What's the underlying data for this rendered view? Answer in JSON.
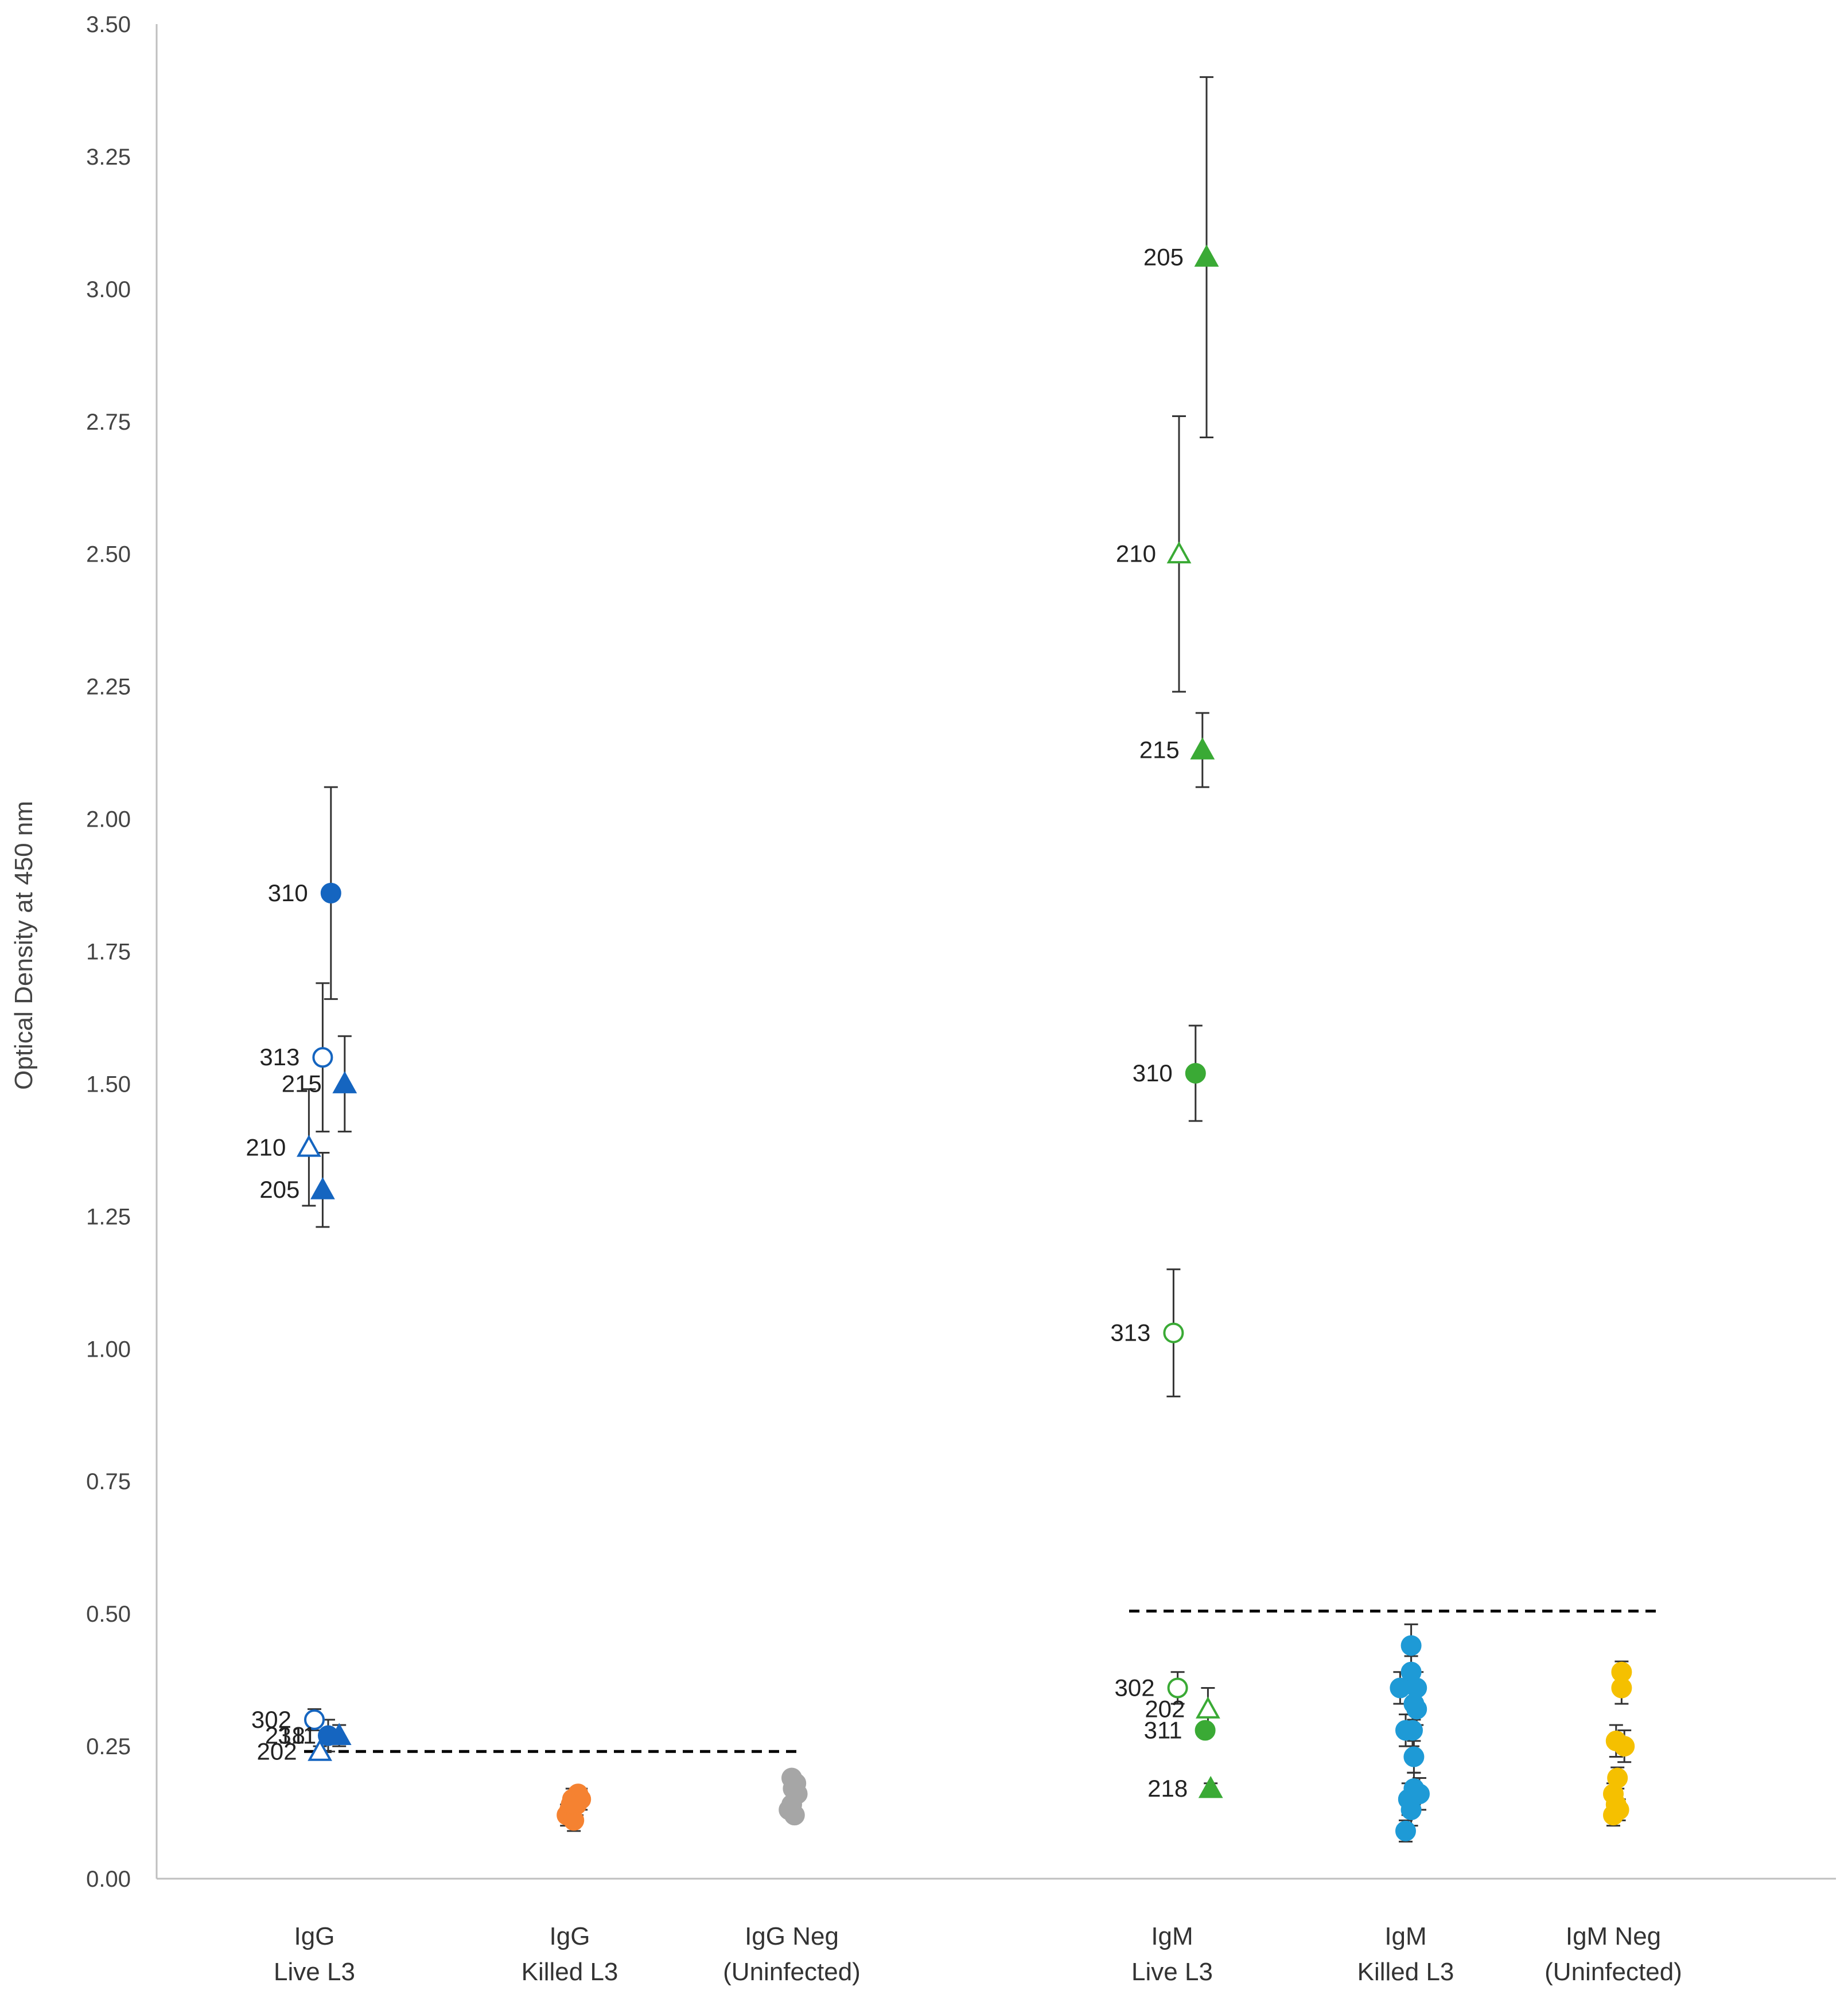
{
  "chart_data": {
    "type": "scatter",
    "title": "",
    "xlabel": "",
    "ylabel": "Optical Density at 450 nm",
    "ylim": [
      0,
      3.5
    ],
    "yticks": [
      "0.00",
      "0.25",
      "0.50",
      "0.75",
      "1.00",
      "1.25",
      "1.50",
      "1.75",
      "2.00",
      "2.25",
      "2.50",
      "2.75",
      "3.00",
      "3.25",
      "3.50"
    ],
    "grid": false,
    "categories": [
      {
        "line1": "IgG",
        "line2": "Live L3"
      },
      {
        "line1": "IgG",
        "line2": "Killed L3"
      },
      {
        "line1": "IgG Neg",
        "line2": "(Uninfected)"
      },
      {
        "line1": "IgM",
        "line2": "Live L3"
      },
      {
        "line1": "IgM",
        "line2": "Killed L3"
      },
      {
        "line1": "IgM Neg",
        "line2": "(Uninfected)"
      }
    ],
    "colors": {
      "igg": "#1565c0",
      "killed_igg": "#f58231",
      "neg_igg": "#a6a6a6",
      "igm": "#3aaa35",
      "killed_igm": "#1e9ad6",
      "neg_igm": "#f5c000",
      "cutoff": "#000000",
      "errorbar": "#333333",
      "axis": "#bfbfbf"
    },
    "cutoffs": [
      {
        "group": "IgG",
        "value": 0.24
      },
      {
        "group": "IgM",
        "value": 0.505
      }
    ],
    "labeled_points": [
      {
        "group": "IgG Live L3",
        "label": "310",
        "x": 0.12,
        "y": 1.86,
        "err": 0.2,
        "marker": "circle",
        "filled": true
      },
      {
        "group": "IgG Live L3",
        "label": "313",
        "x": 0.06,
        "y": 1.55,
        "err": 0.14,
        "marker": "circle",
        "filled": false
      },
      {
        "group": "IgG Live L3",
        "label": "215",
        "x": 0.22,
        "y": 1.5,
        "err": 0.09,
        "marker": "triangle",
        "filled": true
      },
      {
        "group": "IgG Live L3",
        "label": "210",
        "x": -0.04,
        "y": 1.38,
        "err": 0.11,
        "marker": "triangle",
        "filled": false
      },
      {
        "group": "IgG Live L3",
        "label": "205",
        "x": 0.06,
        "y": 1.3,
        "err": 0.07,
        "marker": "triangle",
        "filled": true
      },
      {
        "group": "IgG Live L3",
        "label": "302",
        "x": 0.0,
        "y": 0.3,
        "err": 0.02,
        "marker": "circle",
        "filled": false
      },
      {
        "group": "IgG Live L3",
        "label": "218",
        "x": 0.1,
        "y": 0.27,
        "err": 0.03,
        "marker": "circle",
        "filled": true
      },
      {
        "group": "IgG Live L3",
        "label": "311",
        "x": 0.18,
        "y": 0.27,
        "err": 0.02,
        "marker": "triangle",
        "filled": true
      },
      {
        "group": "IgG Live L3",
        "label": "202",
        "x": 0.04,
        "y": 0.24,
        "err": 0.01,
        "marker": "triangle",
        "filled": false
      },
      {
        "group": "IgM Live L3",
        "label": "205",
        "x": 0.25,
        "y": 3.06,
        "err": 0.34,
        "marker": "triangle",
        "filled": true
      },
      {
        "group": "IgM Live L3",
        "label": "210",
        "x": 0.05,
        "y": 2.5,
        "err": 0.26,
        "marker": "triangle",
        "filled": false
      },
      {
        "group": "IgM Live L3",
        "label": "215",
        "x": 0.22,
        "y": 2.13,
        "err": 0.07,
        "marker": "triangle",
        "filled": true
      },
      {
        "group": "IgM Live L3",
        "label": "310",
        "x": 0.17,
        "y": 1.52,
        "err": 0.09,
        "marker": "circle",
        "filled": true
      },
      {
        "group": "IgM Live L3",
        "label": "313",
        "x": 0.01,
        "y": 1.03,
        "err": 0.12,
        "marker": "circle",
        "filled": false
      },
      {
        "group": "IgM Live L3",
        "label": "302",
        "x": 0.04,
        "y": 0.36,
        "err": 0.03,
        "marker": "circle",
        "filled": false
      },
      {
        "group": "IgM Live L3",
        "label": "202",
        "x": 0.26,
        "y": 0.32,
        "err": 0.04,
        "marker": "triangle",
        "filled": false
      },
      {
        "group": "IgM Live L3",
        "label": "311",
        "x": 0.24,
        "y": 0.28,
        "err": 0.01,
        "marker": "circle",
        "filled": true
      },
      {
        "group": "IgM Live L3",
        "label": "218",
        "x": 0.28,
        "y": 0.17,
        "err": 0.01,
        "marker": "triangle",
        "filled": true
      }
    ],
    "cluster_points": [
      {
        "group": "IgG Killed L3",
        "cat": 1,
        "color": "killed_igg",
        "x": 0.02,
        "y": 0.15,
        "err": 0.02
      },
      {
        "group": "IgG Killed L3",
        "cat": 1,
        "color": "killed_igg",
        "x": 0.05,
        "y": 0.14,
        "err": 0.02
      },
      {
        "group": "IgG Killed L3",
        "cat": 1,
        "color": "killed_igg",
        "x": 0.0,
        "y": 0.13,
        "err": 0.02
      },
      {
        "group": "IgG Killed L3",
        "cat": 1,
        "color": "killed_igg",
        "x": 0.08,
        "y": 0.15,
        "err": 0.02
      },
      {
        "group": "IgG Killed L3",
        "cat": 1,
        "color": "killed_igg",
        "x": -0.02,
        "y": 0.12,
        "err": 0.02
      },
      {
        "group": "IgG Killed L3",
        "cat": 1,
        "color": "killed_igg",
        "x": 0.03,
        "y": 0.11,
        "err": 0.02
      },
      {
        "group": "IgG Killed L3",
        "cat": 1,
        "color": "killed_igg",
        "x": 0.06,
        "y": 0.16,
        "err": 0.01
      },
      {
        "group": "IgG Killed L3",
        "cat": 1,
        "color": "killed_igg",
        "x": 0.01,
        "y": 0.14,
        "err": 0.02
      },
      {
        "group": "IgG Neg",
        "cat": 2,
        "color": "neg_igg",
        "x": 0.0,
        "y": 0.19,
        "err": 0.01
      },
      {
        "group": "IgG Neg",
        "cat": 2,
        "color": "neg_igg",
        "x": 0.03,
        "y": 0.18,
        "err": 0.01
      },
      {
        "group": "IgG Neg",
        "cat": 2,
        "color": "neg_igg",
        "x": 0.01,
        "y": 0.17,
        "err": 0.01
      },
      {
        "group": "IgG Neg",
        "cat": 2,
        "color": "neg_igg",
        "x": 0.04,
        "y": 0.16,
        "err": 0.01
      },
      {
        "group": "IgG Neg",
        "cat": 2,
        "color": "neg_igg",
        "x": -0.02,
        "y": 0.13,
        "err": 0.01
      },
      {
        "group": "IgG Neg",
        "cat": 2,
        "color": "neg_igg",
        "x": 0.02,
        "y": 0.12,
        "err": 0.01
      },
      {
        "group": "IgG Neg",
        "cat": 2,
        "color": "neg_igg",
        "x": 0.0,
        "y": 0.14,
        "err": 0.01
      },
      {
        "group": "IgM Killed L3",
        "cat": 4,
        "color": "killed_igm",
        "x": 0.04,
        "y": 0.44,
        "err": 0.04
      },
      {
        "group": "IgM Killed L3",
        "cat": 4,
        "color": "killed_igm",
        "x": 0.04,
        "y": 0.39,
        "err": 0.03
      },
      {
        "group": "IgM Killed L3",
        "cat": 4,
        "color": "killed_igm",
        "x": 0.08,
        "y": 0.36,
        "err": 0.03
      },
      {
        "group": "IgM Killed L3",
        "cat": 4,
        "color": "killed_igm",
        "x": -0.04,
        "y": 0.36,
        "err": 0.03
      },
      {
        "group": "IgM Killed L3",
        "cat": 4,
        "color": "killed_igm",
        "x": 0.06,
        "y": 0.33,
        "err": 0.03
      },
      {
        "group": "IgM Killed L3",
        "cat": 4,
        "color": "killed_igm",
        "x": 0.08,
        "y": 0.32,
        "err": 0.03
      },
      {
        "group": "IgM Killed L3",
        "cat": 4,
        "color": "killed_igm",
        "x": 0.0,
        "y": 0.28,
        "err": 0.03
      },
      {
        "group": "IgM Killed L3",
        "cat": 4,
        "color": "killed_igm",
        "x": 0.05,
        "y": 0.28,
        "err": 0.03
      },
      {
        "group": "IgM Killed L3",
        "cat": 4,
        "color": "killed_igm",
        "x": 0.06,
        "y": 0.23,
        "err": 0.03
      },
      {
        "group": "IgM Killed L3",
        "cat": 4,
        "color": "killed_igm",
        "x": 0.06,
        "y": 0.17,
        "err": 0.03
      },
      {
        "group": "IgM Killed L3",
        "cat": 4,
        "color": "killed_igm",
        "x": 0.1,
        "y": 0.16,
        "err": 0.03
      },
      {
        "group": "IgM Killed L3",
        "cat": 4,
        "color": "killed_igm",
        "x": 0.02,
        "y": 0.15,
        "err": 0.03
      },
      {
        "group": "IgM Killed L3",
        "cat": 4,
        "color": "killed_igm",
        "x": 0.04,
        "y": 0.13,
        "err": 0.03
      },
      {
        "group": "IgM Killed L3",
        "cat": 4,
        "color": "killed_igm",
        "x": 0.0,
        "y": 0.09,
        "err": 0.02
      },
      {
        "group": "IgM Neg",
        "cat": 5,
        "color": "neg_igm",
        "x": 0.06,
        "y": 0.39,
        "err": 0.02
      },
      {
        "group": "IgM Neg",
        "cat": 5,
        "color": "neg_igm",
        "x": 0.06,
        "y": 0.36,
        "err": 0.03
      },
      {
        "group": "IgM Neg",
        "cat": 5,
        "color": "neg_igm",
        "x": 0.02,
        "y": 0.26,
        "err": 0.03
      },
      {
        "group": "IgM Neg",
        "cat": 5,
        "color": "neg_igm",
        "x": 0.08,
        "y": 0.25,
        "err": 0.03
      },
      {
        "group": "IgM Neg",
        "cat": 5,
        "color": "neg_igm",
        "x": 0.03,
        "y": 0.19,
        "err": 0.02
      },
      {
        "group": "IgM Neg",
        "cat": 5,
        "color": "neg_igm",
        "x": 0.0,
        "y": 0.16,
        "err": 0.02
      },
      {
        "group": "IgM Neg",
        "cat": 5,
        "color": "neg_igm",
        "x": 0.02,
        "y": 0.14,
        "err": 0.02
      },
      {
        "group": "IgM Neg",
        "cat": 5,
        "color": "neg_igm",
        "x": 0.04,
        "y": 0.13,
        "err": 0.02
      },
      {
        "group": "IgM Neg",
        "cat": 5,
        "color": "neg_igm",
        "x": 0.0,
        "y": 0.12,
        "err": 0.02
      }
    ]
  }
}
